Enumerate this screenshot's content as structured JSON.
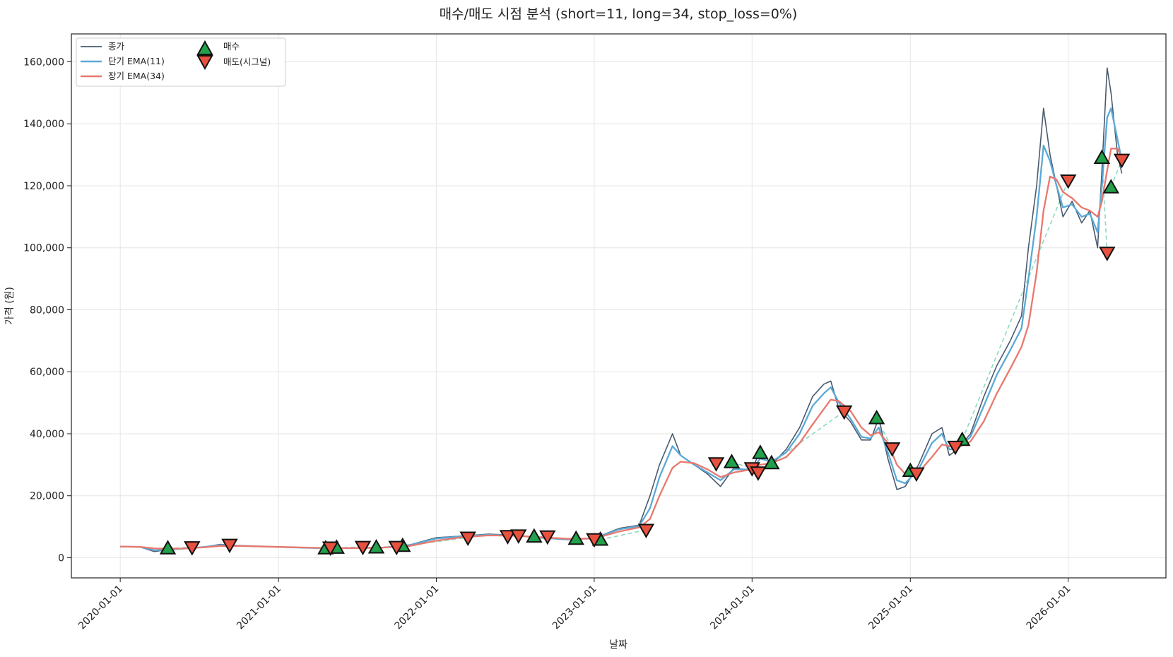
{
  "chart_data": {
    "type": "line",
    "title": "매수/매도 시점 분석 (short=11, long=34, stop_loss=0%)",
    "xlabel": "날짜",
    "ylabel": "가격 (원)",
    "xlim": [
      "2019-09-10",
      "2026-08-15"
    ],
    "ylim": [
      -6500,
      169000
    ],
    "grid": true,
    "legend_position": "top-left",
    "x_ticks": [
      "2020-01-01",
      "2021-01-01",
      "2022-01-01",
      "2023-01-01",
      "2024-01-01",
      "2025-01-01",
      "2026-01-01"
    ],
    "y_ticks": [
      0,
      20000,
      40000,
      60000,
      80000,
      100000,
      120000,
      140000,
      160000
    ],
    "y_tick_labels": [
      "0",
      "20,000",
      "40,000",
      "60,000",
      "80,000",
      "100,000",
      "120,000",
      "140,000",
      "160,000"
    ],
    "colors": {
      "close": "#4a5a6e",
      "ema_short": "#5aa9d6",
      "ema_long": "#e8786d",
      "buy": "#22a04b",
      "sell": "#e8513f",
      "trade_line": "#8fd8c0"
    },
    "series": [
      {
        "name": "종가",
        "key": "close",
        "points": [
          [
            "2020-01-01",
            3600
          ],
          [
            "2020-02-15",
            3500
          ],
          [
            "2020-03-20",
            2000
          ],
          [
            "2020-04-20",
            2600
          ],
          [
            "2020-06-01",
            3000
          ],
          [
            "2020-07-15",
            3500
          ],
          [
            "2020-08-20",
            4300
          ],
          [
            "2020-10-01",
            3900
          ],
          [
            "2020-12-01",
            3600
          ],
          [
            "2021-03-01",
            3200
          ],
          [
            "2021-05-01",
            3000
          ],
          [
            "2021-07-01",
            3100
          ],
          [
            "2021-09-01",
            3300
          ],
          [
            "2021-11-01",
            4200
          ],
          [
            "2022-01-01",
            6500
          ],
          [
            "2022-03-01",
            7000
          ],
          [
            "2022-05-01",
            7600
          ],
          [
            "2022-07-01",
            7300
          ],
          [
            "2022-09-01",
            6400
          ],
          [
            "2022-11-01",
            5800
          ],
          [
            "2023-01-01",
            6300
          ],
          [
            "2023-03-01",
            9500
          ],
          [
            "2023-04-15",
            10500
          ],
          [
            "2023-05-10",
            20000
          ],
          [
            "2023-06-01",
            30000
          ],
          [
            "2023-07-01",
            40000
          ],
          [
            "2023-07-20",
            33000
          ],
          [
            "2023-08-20",
            30000
          ],
          [
            "2023-09-20",
            27000
          ],
          [
            "2023-10-20",
            23000
          ],
          [
            "2023-11-20",
            29000
          ],
          [
            "2024-01-01",
            28000
          ],
          [
            "2024-01-20",
            35000
          ],
          [
            "2024-02-15",
            30000
          ],
          [
            "2024-03-20",
            35000
          ],
          [
            "2024-04-20",
            42000
          ],
          [
            "2024-05-20",
            52000
          ],
          [
            "2024-06-15",
            56000
          ],
          [
            "2024-07-01",
            57000
          ],
          [
            "2024-07-20",
            48000
          ],
          [
            "2024-08-15",
            44000
          ],
          [
            "2024-09-10",
            38000
          ],
          [
            "2024-10-01",
            38000
          ],
          [
            "2024-10-20",
            45000
          ],
          [
            "2024-11-10",
            32000
          ],
          [
            "2024-12-01",
            22000
          ],
          [
            "2024-12-20",
            23000
          ],
          [
            "2025-01-20",
            30000
          ],
          [
            "2025-02-20",
            40000
          ],
          [
            "2025-03-15",
            42000
          ],
          [
            "2025-04-01",
            33000
          ],
          [
            "2025-04-20",
            35000
          ],
          [
            "2025-05-20",
            40000
          ],
          [
            "2025-06-20",
            52000
          ],
          [
            "2025-07-20",
            62000
          ],
          [
            "2025-08-20",
            70000
          ],
          [
            "2025-09-15",
            78000
          ],
          [
            "2025-10-01",
            100000
          ],
          [
            "2025-10-20",
            120000
          ],
          [
            "2025-11-05",
            145000
          ],
          [
            "2025-11-20",
            130000
          ],
          [
            "2025-12-05",
            120000
          ],
          [
            "2025-12-20",
            110000
          ],
          [
            "2026-01-10",
            115000
          ],
          [
            "2026-02-01",
            108000
          ],
          [
            "2026-02-20",
            112000
          ],
          [
            "2026-03-10",
            100000
          ],
          [
            "2026-03-20",
            125000
          ],
          [
            "2026-04-01",
            158000
          ],
          [
            "2026-04-10",
            150000
          ],
          [
            "2026-04-25",
            130000
          ],
          [
            "2026-05-05",
            124000
          ]
        ]
      },
      {
        "name": "단기 EMA(11)",
        "key": "ema_short",
        "points": [
          [
            "2020-01-01",
            3600
          ],
          [
            "2020-02-15",
            3500
          ],
          [
            "2020-03-20",
            2400
          ],
          [
            "2020-04-20",
            2600
          ],
          [
            "2020-06-01",
            3000
          ],
          [
            "2020-07-15",
            3500
          ],
          [
            "2020-08-20",
            4100
          ],
          [
            "2020-10-01",
            3900
          ],
          [
            "2020-12-01",
            3600
          ],
          [
            "2021-03-01",
            3200
          ],
          [
            "2021-05-01",
            3050
          ],
          [
            "2021-07-01",
            3100
          ],
          [
            "2021-09-01",
            3300
          ],
          [
            "2021-11-01",
            4100
          ],
          [
            "2022-01-01",
            6200
          ],
          [
            "2022-03-01",
            6900
          ],
          [
            "2022-05-01",
            7400
          ],
          [
            "2022-07-01",
            7200
          ],
          [
            "2022-09-01",
            6400
          ],
          [
            "2022-11-01",
            5900
          ],
          [
            "2023-01-01",
            6300
          ],
          [
            "2023-03-01",
            9200
          ],
          [
            "2023-04-15",
            10200
          ],
          [
            "2023-05-10",
            16000
          ],
          [
            "2023-06-01",
            26000
          ],
          [
            "2023-07-01",
            36000
          ],
          [
            "2023-07-20",
            33000
          ],
          [
            "2023-08-20",
            30000
          ],
          [
            "2023-09-20",
            27500
          ],
          [
            "2023-10-20",
            25000
          ],
          [
            "2023-11-20",
            28500
          ],
          [
            "2024-01-01",
            28500
          ],
          [
            "2024-01-20",
            32000
          ],
          [
            "2024-02-15",
            31000
          ],
          [
            "2024-03-20",
            34000
          ],
          [
            "2024-04-20",
            40000
          ],
          [
            "2024-05-20",
            49000
          ],
          [
            "2024-06-15",
            53000
          ],
          [
            "2024-07-01",
            55000
          ],
          [
            "2024-07-20",
            50000
          ],
          [
            "2024-08-15",
            45000
          ],
          [
            "2024-09-10",
            39000
          ],
          [
            "2024-10-01",
            38500
          ],
          [
            "2024-10-20",
            42000
          ],
          [
            "2024-11-10",
            34000
          ],
          [
            "2024-12-01",
            25000
          ],
          [
            "2024-12-20",
            24000
          ],
          [
            "2025-01-20",
            28500
          ],
          [
            "2025-02-20",
            37000
          ],
          [
            "2025-03-15",
            40000
          ],
          [
            "2025-04-01",
            35000
          ],
          [
            "2025-04-20",
            35000
          ],
          [
            "2025-05-20",
            39000
          ],
          [
            "2025-06-20",
            49000
          ],
          [
            "2025-07-20",
            59000
          ],
          [
            "2025-08-20",
            67000
          ],
          [
            "2025-09-15",
            74000
          ],
          [
            "2025-10-01",
            90000
          ],
          [
            "2025-10-20",
            110000
          ],
          [
            "2025-11-05",
            133000
          ],
          [
            "2025-11-20",
            128000
          ],
          [
            "2025-12-05",
            120000
          ],
          [
            "2025-12-20",
            113000
          ],
          [
            "2026-01-10",
            114000
          ],
          [
            "2026-02-01",
            110000
          ],
          [
            "2026-02-20",
            111000
          ],
          [
            "2026-03-10",
            105000
          ],
          [
            "2026-03-20",
            120000
          ],
          [
            "2026-04-01",
            142000
          ],
          [
            "2026-04-10",
            145000
          ],
          [
            "2026-04-25",
            135000
          ],
          [
            "2026-05-05",
            128000
          ]
        ]
      },
      {
        "name": "장기 EMA(34)",
        "key": "ema_long",
        "points": [
          [
            "2020-01-01",
            3600
          ],
          [
            "2020-02-15",
            3500
          ],
          [
            "2020-03-20",
            3000
          ],
          [
            "2020-04-20",
            2900
          ],
          [
            "2020-06-01",
            3000
          ],
          [
            "2020-07-15",
            3400
          ],
          [
            "2020-08-20",
            3800
          ],
          [
            "2020-10-01",
            3800
          ],
          [
            "2020-12-01",
            3600
          ],
          [
            "2021-03-01",
            3300
          ],
          [
            "2021-05-01",
            3100
          ],
          [
            "2021-07-01",
            3100
          ],
          [
            "2021-09-01",
            3300
          ],
          [
            "2021-11-01",
            3800
          ],
          [
            "2022-01-01",
            5500
          ],
          [
            "2022-03-01",
            6600
          ],
          [
            "2022-05-01",
            7200
          ],
          [
            "2022-07-01",
            7100
          ],
          [
            "2022-09-01",
            6600
          ],
          [
            "2022-11-01",
            6100
          ],
          [
            "2023-01-01",
            6200
          ],
          [
            "2023-03-01",
            8500
          ],
          [
            "2023-04-15",
            9800
          ],
          [
            "2023-05-10",
            12500
          ],
          [
            "2023-06-01",
            20000
          ],
          [
            "2023-07-01",
            29000
          ],
          [
            "2023-07-20",
            31000
          ],
          [
            "2023-08-20",
            30500
          ],
          [
            "2023-09-20",
            28500
          ],
          [
            "2023-10-20",
            26000
          ],
          [
            "2023-11-20",
            27500
          ],
          [
            "2024-01-01",
            28500
          ],
          [
            "2024-01-20",
            30000
          ],
          [
            "2024-02-15",
            30500
          ],
          [
            "2024-03-20",
            32500
          ],
          [
            "2024-04-20",
            37000
          ],
          [
            "2024-05-20",
            43000
          ],
          [
            "2024-06-15",
            48000
          ],
          [
            "2024-07-01",
            51000
          ],
          [
            "2024-07-20",
            50500
          ],
          [
            "2024-08-15",
            47500
          ],
          [
            "2024-09-10",
            42000
          ],
          [
            "2024-10-01",
            39500
          ],
          [
            "2024-10-20",
            40500
          ],
          [
            "2024-11-10",
            37000
          ],
          [
            "2024-12-01",
            30000
          ],
          [
            "2024-12-20",
            27000
          ],
          [
            "2025-01-20",
            27500
          ],
          [
            "2025-02-20",
            32500
          ],
          [
            "2025-03-15",
            36500
          ],
          [
            "2025-04-01",
            36000
          ],
          [
            "2025-04-20",
            35500
          ],
          [
            "2025-05-20",
            37500
          ],
          [
            "2025-06-20",
            44000
          ],
          [
            "2025-07-20",
            53000
          ],
          [
            "2025-08-20",
            61000
          ],
          [
            "2025-09-15",
            68000
          ],
          [
            "2025-10-01",
            75000
          ],
          [
            "2025-10-20",
            92000
          ],
          [
            "2025-11-05",
            112000
          ],
          [
            "2025-11-20",
            123000
          ],
          [
            "2025-12-05",
            122000
          ],
          [
            "2025-12-20",
            118000
          ],
          [
            "2026-01-10",
            116000
          ],
          [
            "2026-02-01",
            113000
          ],
          [
            "2026-02-20",
            112000
          ],
          [
            "2026-03-10",
            110000
          ],
          [
            "2026-03-20",
            115000
          ],
          [
            "2026-04-01",
            125000
          ],
          [
            "2026-04-10",
            132000
          ],
          [
            "2026-04-25",
            132000
          ],
          [
            "2026-05-05",
            129000
          ]
        ]
      }
    ],
    "markers": [
      {
        "name": "매수",
        "key": "buy",
        "shape": "triangle-up",
        "points": [
          [
            "2020-04-20",
            3000
          ],
          [
            "2021-04-20",
            3000
          ],
          [
            "2021-05-15",
            3200
          ],
          [
            "2021-08-15",
            3300
          ],
          [
            "2021-10-15",
            3800
          ],
          [
            "2022-08-15",
            6800
          ],
          [
            "2022-11-20",
            6100
          ],
          [
            "2023-01-15",
            5800
          ],
          [
            "2023-11-15",
            30800
          ],
          [
            "2024-01-20",
            33800
          ],
          [
            "2024-02-15",
            30500
          ],
          [
            "2024-10-15",
            45000
          ],
          [
            "2025-01-01",
            28000
          ],
          [
            "2025-05-01",
            38000
          ],
          [
            "2026-03-20",
            129000
          ],
          [
            "2026-04-10",
            119500
          ]
        ]
      },
      {
        "name": "매도(시그널)",
        "key": "sell",
        "shape": "triangle-down",
        "points": [
          [
            "2020-06-15",
            3400
          ],
          [
            "2020-09-10",
            4200
          ],
          [
            "2021-05-01",
            3300
          ],
          [
            "2021-07-15",
            3500
          ],
          [
            "2021-10-01",
            3500
          ],
          [
            "2022-03-15",
            6500
          ],
          [
            "2022-06-15",
            7000
          ],
          [
            "2022-07-10",
            7200
          ],
          [
            "2022-09-15",
            6900
          ],
          [
            "2023-01-01",
            6000
          ],
          [
            "2023-05-01",
            9000
          ],
          [
            "2023-10-10",
            30500
          ],
          [
            "2024-01-01",
            28900
          ],
          [
            "2024-01-15",
            27500
          ],
          [
            "2024-08-01",
            47200
          ],
          [
            "2024-11-20",
            35300
          ],
          [
            "2025-01-15",
            27200
          ],
          [
            "2025-04-15",
            35800
          ],
          [
            "2026-01-01",
            121700
          ],
          [
            "2026-04-01",
            98400
          ],
          [
            "2026-05-05",
            128400
          ]
        ]
      }
    ]
  }
}
